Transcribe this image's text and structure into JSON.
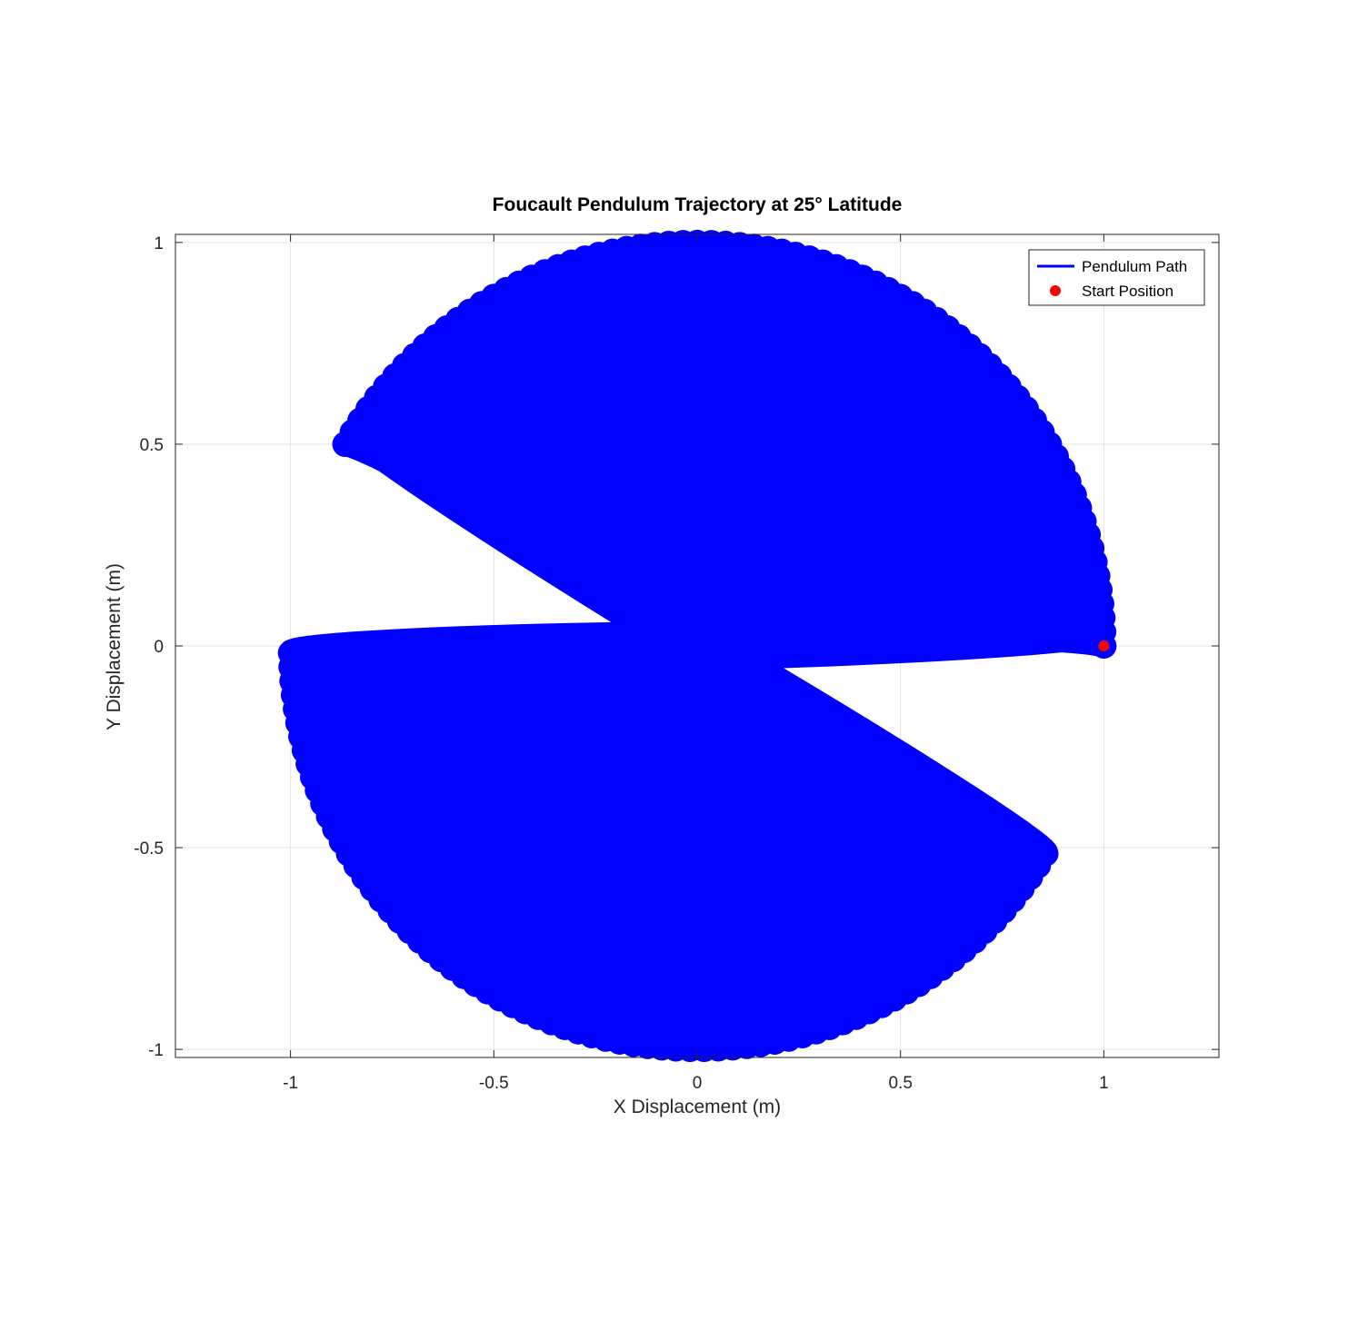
{
  "chart_data": {
    "type": "line",
    "title": "Foucault Pendulum Trajectory at 25° Latitude",
    "xlabel": "X Displacement (m)",
    "ylabel": "Y Displacement (m)",
    "xlim": [
      -1.283,
      1.283
    ],
    "ylim": [
      -1.02,
      1.02
    ],
    "xticks": [
      -1,
      -0.5,
      0,
      0.5,
      1
    ],
    "xtick_labels": [
      "-1",
      "-0.5",
      "0",
      "0.5",
      "1"
    ],
    "yticks": [
      -1,
      -0.5,
      0,
      0.5,
      1
    ],
    "ytick_labels": [
      "-1",
      "-0.5",
      "0",
      "0.5",
      "1"
    ],
    "grid": true,
    "legend_position": "top-right",
    "series": [
      {
        "name": "Pendulum Path",
        "kind": "line",
        "color": "#0000ff",
        "oscillation_amplitude": 1.0,
        "precession_start_deg": 0,
        "precession_end_deg": 150,
        "precession_direction": "counterclockwise",
        "ellipse_minor_amplitude": 0.03,
        "swings": 75
      },
      {
        "name": "Start Position",
        "kind": "marker",
        "color": "#ff0000",
        "x": 1,
        "y": 0
      }
    ]
  }
}
